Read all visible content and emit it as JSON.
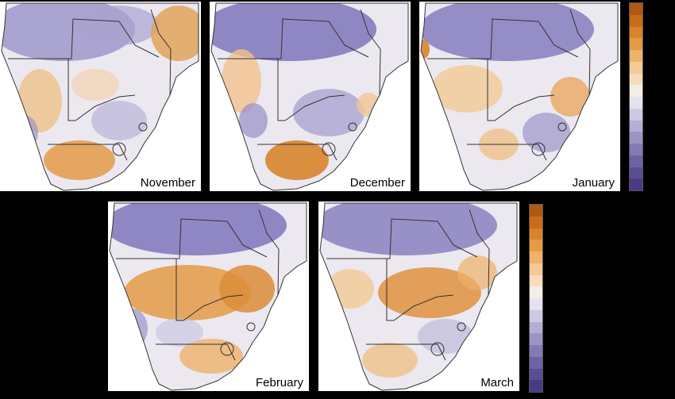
{
  "panels": [
    {
      "id": "november",
      "label": "November"
    },
    {
      "id": "december",
      "label": "December"
    },
    {
      "id": "january",
      "label": "January"
    },
    {
      "id": "february",
      "label": "February"
    },
    {
      "id": "march",
      "label": "March"
    }
  ],
  "colorbar": {
    "steps": [
      "#b05a10",
      "#c86c1c",
      "#d8842c",
      "#e49a46",
      "#eeb26a",
      "#f4c996",
      "#f7dcbc",
      "#f2ede6",
      "#e4e2ef",
      "#ccc9e3",
      "#b3afd4",
      "#9b95c4",
      "#837bb4",
      "#6d63a4",
      "#5a4d94",
      "#4a3a84"
    ]
  },
  "colors": {
    "background": "#000000",
    "map_land_neutral": "#eeeaf0",
    "wet_purple": "#6f62b0",
    "dry_orange": "#e08c34"
  }
}
